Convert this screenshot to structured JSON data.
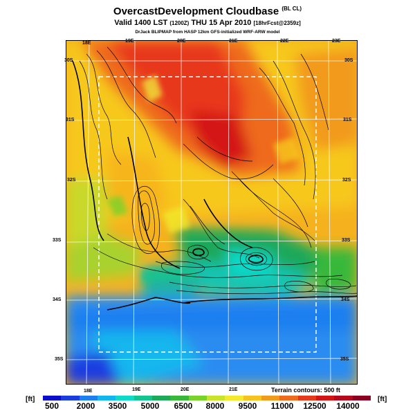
{
  "header": {
    "title": "OvercastDevelopment Cloudbase",
    "title_suffix": "(BL CL)",
    "valid_line": "Valid 1400 LST",
    "valid_code": "(1200Z)",
    "valid_date": "THU 15 Apr 2010",
    "forecast_code": "[18hrFcst@2359z]",
    "credit": "DrJack BLIPMAP from HASP 12km GFS-initialized WRF-ARW model"
  },
  "grid_labels": {
    "lon_top": [
      "18E",
      "19E",
      "20E",
      "21E",
      "22E",
      "23E"
    ],
    "lon_bottom": [
      "18E",
      "19E",
      "20E",
      "21E"
    ],
    "lat_left": [
      "30S",
      "31S",
      "32S",
      "33S",
      "34S",
      "35S"
    ],
    "lat_right": [
      "30S",
      "31S",
      "32S",
      "33S",
      "34S",
      "35S"
    ]
  },
  "terrain_note": "Terrain contours: 500 ft",
  "legend": {
    "unit": "[ft]",
    "labels": [
      "500",
      "2000",
      "3500",
      "5000",
      "6500",
      "8000",
      "9500",
      "11000",
      "12500",
      "14000"
    ],
    "colors": [
      "#0c0ccc",
      "#1a3de0",
      "#1d7ff0",
      "#12b6ee",
      "#0fd9c8",
      "#12c48e",
      "#1ea85a",
      "#38b83a",
      "#78d22a",
      "#c8e32a",
      "#f2ea2a",
      "#f7c21e",
      "#f29a1a",
      "#ef6a1c",
      "#e8381c",
      "#d41414",
      "#b40a1e",
      "#8c0020"
    ]
  },
  "colors": {
    "ocean_blue": "#2a8cf0",
    "high_red": "#e8381c",
    "mid_orange": "#f29a1a",
    "low_green": "#1ea85a",
    "contour": "#000000",
    "grid": "#ffffff"
  }
}
